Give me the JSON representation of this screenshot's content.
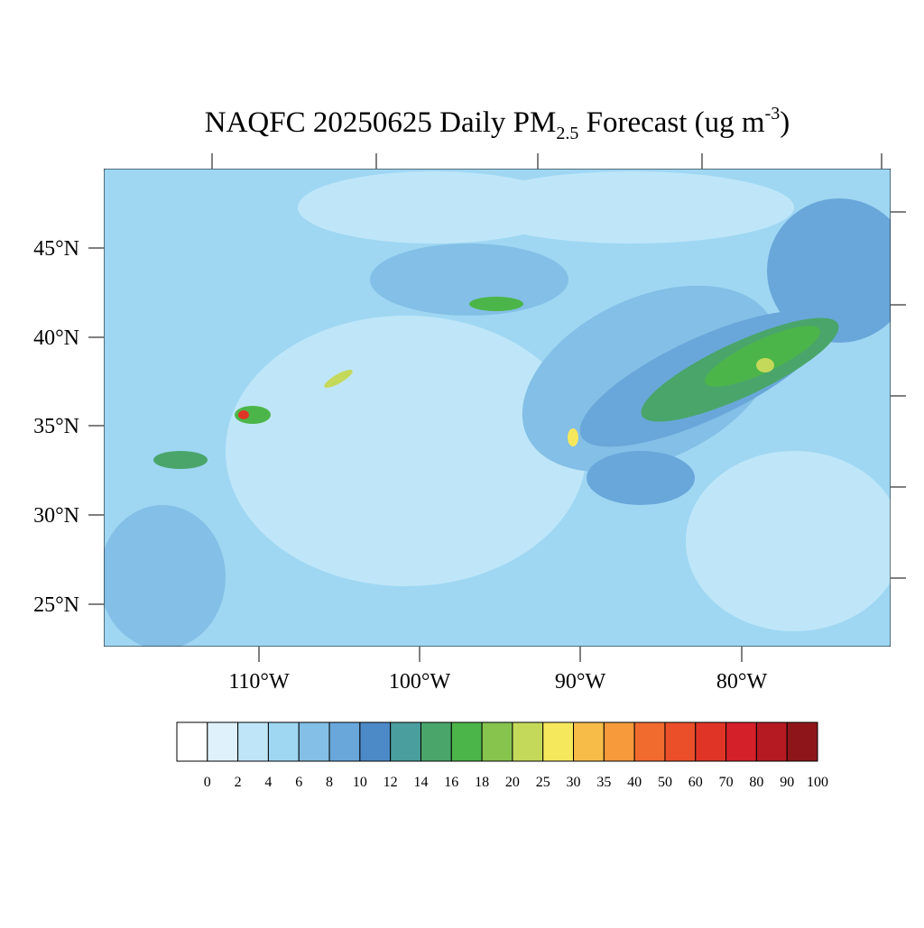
{
  "map": {
    "title": {
      "main": "NAQFC 20250625 Daily PM",
      "sub": "2.5",
      "middle": " Forecast (ug m",
      "sup": "-3",
      "end": ")"
    },
    "lat_labels": [
      "45°N",
      "40°N",
      "35°N",
      "30°N",
      "25°N"
    ],
    "lon_labels": [
      "110°W",
      "100°W",
      "90°W",
      "80°W"
    ]
  },
  "colorbar": {
    "colors": [
      "#ffffff",
      "#dff1fb",
      "#bfe6f8",
      "#9fd7f3",
      "#83bfe6",
      "#69a7da",
      "#4b8ac7",
      "#4a9e9e",
      "#4aa56b",
      "#4cb549",
      "#86c44e",
      "#c4d95a",
      "#f6e85c",
      "#f7bc48",
      "#f69a3b",
      "#f26b2e",
      "#eb4f2a",
      "#e03526",
      "#d32029",
      "#b51a22",
      "#8e161a"
    ],
    "labels": [
      0,
      2,
      4,
      6,
      8,
      10,
      12,
      14,
      16,
      18,
      20,
      25,
      30,
      35,
      40,
      50,
      60,
      70,
      80,
      90,
      100
    ]
  }
}
